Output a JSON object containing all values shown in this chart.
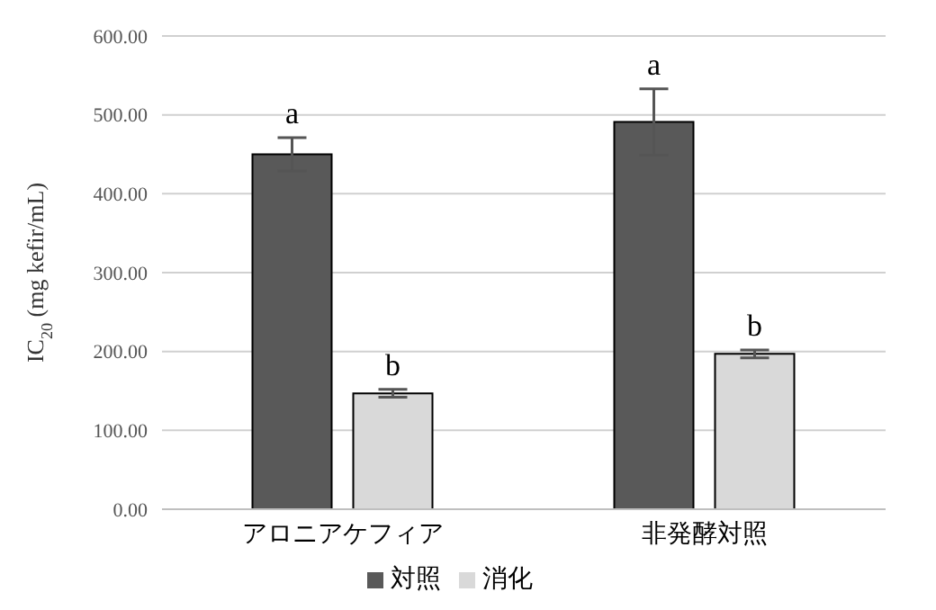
{
  "chart_data": {
    "type": "bar",
    "ylabel": "IC$_{20}$ (mg kefir/mL)",
    "categories": [
      "アロニアケフィア",
      "非発酵対照"
    ],
    "series": [
      {
        "name": "対照",
        "color": "#595959",
        "values": [
          450,
          491
        ],
        "errors": [
          21,
          42
        ],
        "value_labels": [
          "a",
          "a"
        ]
      },
      {
        "name": "消化",
        "color": "#d9d9d9",
        "values": [
          147,
          197
        ],
        "errors": [
          5,
          5
        ],
        "value_labels": [
          "b",
          "b"
        ]
      }
    ],
    "ylim": [
      0,
      600
    ],
    "yticks": [
      {
        "value": 0,
        "label": "0.00"
      },
      {
        "value": 100,
        "label": "100.00"
      },
      {
        "value": 200,
        "label": "200.00"
      },
      {
        "value": 300,
        "label": "300.00"
      },
      {
        "value": 400,
        "label": "400.00"
      },
      {
        "value": 500,
        "label": "500.00"
      },
      {
        "value": 600,
        "label": "600.00"
      }
    ],
    "grid": "y",
    "legend": "bottom"
  }
}
